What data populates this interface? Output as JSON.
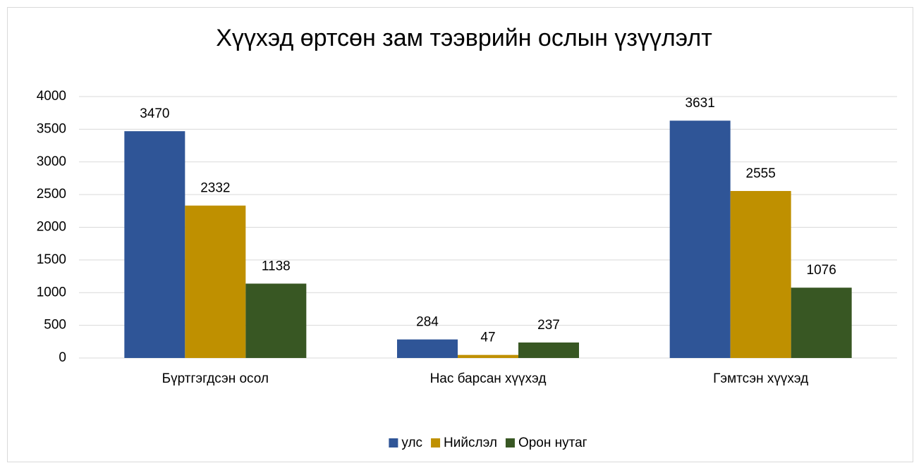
{
  "chart_data": {
    "type": "bar",
    "title": "Хүүхэд өртсөн зам тээврийн ослын үзүүлэлт",
    "categories": [
      "Бүртгэгдсэн осол",
      "Нас барсан хүүхэд",
      "Гэмтсэн хүүхэд"
    ],
    "series": [
      {
        "name": "улс",
        "color": "#2f5597",
        "values": [
          3470,
          284,
          3631
        ]
      },
      {
        "name": "Нийслэл",
        "color": "#bf9000",
        "values": [
          2332,
          47,
          2555
        ]
      },
      {
        "name": "Орон нутаг",
        "color": "#385723",
        "values": [
          1138,
          237,
          1076
        ]
      }
    ],
    "ylim": [
      0,
      4000
    ],
    "yticks": [
      0,
      500,
      1000,
      1500,
      2000,
      2500,
      3000,
      3500,
      4000
    ],
    "grid": true,
    "legend": "bottom"
  }
}
